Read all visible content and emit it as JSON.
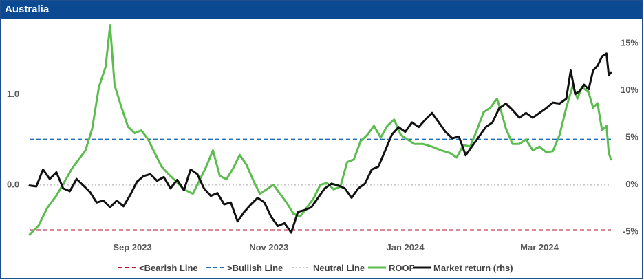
{
  "title": "Australia",
  "colors": {
    "header_bg": "#0b4a92",
    "roof": "#5bbd4e",
    "market": "#111111",
    "bearish": "#b0172a",
    "bullish": "#1f6fbf",
    "neutral": "#c8c8c8"
  },
  "chart_data": {
    "type": "line",
    "title": "Australia",
    "x_ticks": [
      "Sep 2023",
      "Nov 2023",
      "Jan 2024",
      "Mar 2024"
    ],
    "y_left": {
      "ticks": [
        "1.0",
        "0.0"
      ],
      "tick_values": [
        1.0,
        0.0
      ],
      "range": [
        -0.58,
        1.78
      ]
    },
    "y_right": {
      "ticks": [
        "15%",
        "10%",
        "5%",
        "0%",
        "-5%"
      ],
      "tick_values": [
        15,
        10,
        5,
        0,
        -5
      ],
      "range": [
        -5.7,
        17.0
      ]
    },
    "x_range": [
      "2023-07-17",
      "2024-04-02"
    ],
    "grid": false,
    "legend_position": "bottom",
    "reference_lines": [
      {
        "name": "<Bearish Line",
        "value": -0.5,
        "axis": "left",
        "style": "dashed"
      },
      {
        "name": ">Bullish Line",
        "value": 0.5,
        "axis": "left",
        "style": "dashed"
      },
      {
        "name": "Neutral Line",
        "value": 0.0,
        "axis": "left",
        "style": "dotted"
      }
    ],
    "series": [
      {
        "name": "ROOF",
        "axis": "left",
        "points": [
          [
            "2023-07-17",
            -0.55
          ],
          [
            "2023-07-21",
            -0.45
          ],
          [
            "2023-07-25",
            -0.25
          ],
          [
            "2023-07-29",
            -0.12
          ],
          [
            "2023-08-02",
            0.05
          ],
          [
            "2023-08-05",
            0.18
          ],
          [
            "2023-08-08",
            0.28
          ],
          [
            "2023-08-11",
            0.38
          ],
          [
            "2023-08-14",
            0.62
          ],
          [
            "2023-08-17",
            1.08
          ],
          [
            "2023-08-20",
            1.3
          ],
          [
            "2023-08-22",
            1.76
          ],
          [
            "2023-08-24",
            1.1
          ],
          [
            "2023-08-27",
            0.86
          ],
          [
            "2023-08-30",
            0.64
          ],
          [
            "2023-09-02",
            0.57
          ],
          [
            "2023-09-05",
            0.6
          ],
          [
            "2023-09-08",
            0.5
          ],
          [
            "2023-09-11",
            0.35
          ],
          [
            "2023-09-14",
            0.2
          ],
          [
            "2023-09-17",
            0.12
          ],
          [
            "2023-09-20",
            0.05
          ],
          [
            "2023-09-24",
            -0.05
          ],
          [
            "2023-09-28",
            -0.1
          ],
          [
            "2023-10-01",
            0.05
          ],
          [
            "2023-10-04",
            0.2
          ],
          [
            "2023-10-07",
            0.38
          ],
          [
            "2023-10-10",
            0.1
          ],
          [
            "2023-10-13",
            0.06
          ],
          [
            "2023-10-16",
            0.18
          ],
          [
            "2023-10-19",
            0.33
          ],
          [
            "2023-10-22",
            0.22
          ],
          [
            "2023-10-25",
            0.05
          ],
          [
            "2023-10-28",
            -0.1
          ],
          [
            "2023-10-31",
            -0.05
          ],
          [
            "2023-11-03",
            0.0
          ],
          [
            "2023-11-06",
            -0.1
          ],
          [
            "2023-11-09",
            -0.2
          ],
          [
            "2023-11-12",
            -0.32
          ],
          [
            "2023-11-15",
            -0.35
          ],
          [
            "2023-11-18",
            -0.25
          ],
          [
            "2023-11-21",
            -0.15
          ],
          [
            "2023-11-24",
            0.0
          ],
          [
            "2023-11-27",
            0.02
          ],
          [
            "2023-11-30",
            -0.05
          ],
          [
            "2023-12-03",
            -0.02
          ],
          [
            "2023-12-06",
            0.25
          ],
          [
            "2023-12-09",
            0.28
          ],
          [
            "2023-12-12",
            0.48
          ],
          [
            "2023-12-15",
            0.55
          ],
          [
            "2023-12-18",
            0.65
          ],
          [
            "2023-12-21",
            0.52
          ],
          [
            "2023-12-24",
            0.65
          ],
          [
            "2023-12-27",
            0.72
          ],
          [
            "2023-12-30",
            0.55
          ],
          [
            "2024-01-02",
            0.5
          ],
          [
            "2024-01-05",
            0.45
          ],
          [
            "2024-01-09",
            0.45
          ],
          [
            "2024-01-13",
            0.42
          ],
          [
            "2024-01-17",
            0.38
          ],
          [
            "2024-01-21",
            0.35
          ],
          [
            "2024-01-24",
            0.3
          ],
          [
            "2024-01-27",
            0.44
          ],
          [
            "2024-01-30",
            0.42
          ],
          [
            "2024-02-02",
            0.6
          ],
          [
            "2024-02-05",
            0.8
          ],
          [
            "2024-02-08",
            0.85
          ],
          [
            "2024-02-11",
            0.95
          ],
          [
            "2024-02-13",
            0.8
          ],
          [
            "2024-02-15",
            0.62
          ],
          [
            "2024-02-18",
            0.45
          ],
          [
            "2024-02-21",
            0.45
          ],
          [
            "2024-02-24",
            0.5
          ],
          [
            "2024-02-27",
            0.38
          ],
          [
            "2024-03-01",
            0.42
          ],
          [
            "2024-03-04",
            0.36
          ],
          [
            "2024-03-07",
            0.37
          ],
          [
            "2024-03-10",
            0.55
          ],
          [
            "2024-03-13",
            0.85
          ],
          [
            "2024-03-16",
            1.1
          ],
          [
            "2024-03-18",
            0.95
          ],
          [
            "2024-03-20",
            1.08
          ],
          [
            "2024-03-23",
            1.02
          ],
          [
            "2024-03-25",
            0.85
          ],
          [
            "2024-03-27",
            0.9
          ],
          [
            "2024-03-29",
            0.6
          ],
          [
            "2024-03-31",
            0.65
          ],
          [
            "2024-04-01",
            0.35
          ],
          [
            "2024-04-02",
            0.28
          ]
        ]
      },
      {
        "name": "Market return (rhs)",
        "axis": "right",
        "points": [
          [
            "2023-07-17",
            -0.2
          ],
          [
            "2023-07-20",
            -0.3
          ],
          [
            "2023-07-23",
            1.5
          ],
          [
            "2023-07-26",
            0.5
          ],
          [
            "2023-07-29",
            1.2
          ],
          [
            "2023-08-01",
            -0.5
          ],
          [
            "2023-08-04",
            -0.8
          ],
          [
            "2023-08-07",
            0.5
          ],
          [
            "2023-08-10",
            -0.2
          ],
          [
            "2023-08-13",
            -0.9
          ],
          [
            "2023-08-16",
            -2.0
          ],
          [
            "2023-08-19",
            -1.8
          ],
          [
            "2023-08-22",
            -2.5
          ],
          [
            "2023-08-25",
            -1.8
          ],
          [
            "2023-08-28",
            -2.4
          ],
          [
            "2023-08-31",
            -1.2
          ],
          [
            "2023-09-03",
            0.2
          ],
          [
            "2023-09-06",
            0.8
          ],
          [
            "2023-09-09",
            1.0
          ],
          [
            "2023-09-12",
            0.3
          ],
          [
            "2023-09-15",
            0.7
          ],
          [
            "2023-09-18",
            -0.5
          ],
          [
            "2023-09-21",
            0.4
          ],
          [
            "2023-09-24",
            -0.7
          ],
          [
            "2023-09-27",
            1.5
          ],
          [
            "2023-09-30",
            1.0
          ],
          [
            "2023-10-03",
            -0.5
          ],
          [
            "2023-10-06",
            -1.3
          ],
          [
            "2023-10-09",
            -1.0
          ],
          [
            "2023-10-12",
            -2.2
          ],
          [
            "2023-10-15",
            -2.0
          ],
          [
            "2023-10-18",
            -4.0
          ],
          [
            "2023-10-21",
            -3.0
          ],
          [
            "2023-10-24",
            -2.2
          ],
          [
            "2023-10-27",
            -1.5
          ],
          [
            "2023-10-30",
            -2.0
          ],
          [
            "2023-11-02",
            -3.5
          ],
          [
            "2023-11-05",
            -4.5
          ],
          [
            "2023-11-08",
            -4.2
          ],
          [
            "2023-11-11",
            -5.2
          ],
          [
            "2023-11-14",
            -3.0
          ],
          [
            "2023-11-17",
            -2.8
          ],
          [
            "2023-11-20",
            -2.5
          ],
          [
            "2023-11-23",
            -1.5
          ],
          [
            "2023-11-26",
            -0.5
          ],
          [
            "2023-11-29",
            0.0
          ],
          [
            "2023-12-02",
            -0.2
          ],
          [
            "2023-12-05",
            -0.5
          ],
          [
            "2023-12-08",
            -1.5
          ],
          [
            "2023-12-11",
            -0.5
          ],
          [
            "2023-12-14",
            0.0
          ],
          [
            "2023-12-17",
            1.5
          ],
          [
            "2023-12-20",
            1.8
          ],
          [
            "2023-12-23",
            3.5
          ],
          [
            "2023-12-26",
            5.2
          ],
          [
            "2023-12-29",
            6.0
          ],
          [
            "2024-01-01",
            5.5
          ],
          [
            "2024-01-04",
            6.5
          ],
          [
            "2024-01-07",
            6.0
          ],
          [
            "2024-01-10",
            6.8
          ],
          [
            "2024-01-13",
            7.5
          ],
          [
            "2024-01-16",
            6.5
          ],
          [
            "2024-01-19",
            5.5
          ],
          [
            "2024-01-22",
            4.8
          ],
          [
            "2024-01-25",
            5.0
          ],
          [
            "2024-01-28",
            3.0
          ],
          [
            "2024-01-31",
            4.0
          ],
          [
            "2024-02-03",
            5.0
          ],
          [
            "2024-02-06",
            6.0
          ],
          [
            "2024-02-09",
            6.5
          ],
          [
            "2024-02-12",
            8.0
          ],
          [
            "2024-02-15",
            8.5
          ],
          [
            "2024-02-18",
            7.8
          ],
          [
            "2024-02-21",
            7.0
          ],
          [
            "2024-02-24",
            7.5
          ],
          [
            "2024-02-27",
            7.0
          ],
          [
            "2024-03-01",
            7.5
          ],
          [
            "2024-03-04",
            8.0
          ],
          [
            "2024-03-07",
            8.6
          ],
          [
            "2024-03-10",
            8.5
          ],
          [
            "2024-03-13",
            9.0
          ],
          [
            "2024-03-15",
            12.0
          ],
          [
            "2024-03-17",
            9.5
          ],
          [
            "2024-03-19",
            9.8
          ],
          [
            "2024-03-21",
            10.5
          ],
          [
            "2024-03-23",
            10.0
          ],
          [
            "2024-03-25",
            12.0
          ],
          [
            "2024-03-27",
            12.5
          ],
          [
            "2024-03-29",
            13.5
          ],
          [
            "2024-03-31",
            13.8
          ],
          [
            "2024-04-01",
            11.5
          ],
          [
            "2024-04-02",
            11.8
          ]
        ]
      }
    ],
    "legend": [
      "<Bearish Line",
      ">Bullish Line",
      "Neutral Line",
      "ROOF",
      "Market return (rhs)"
    ]
  }
}
